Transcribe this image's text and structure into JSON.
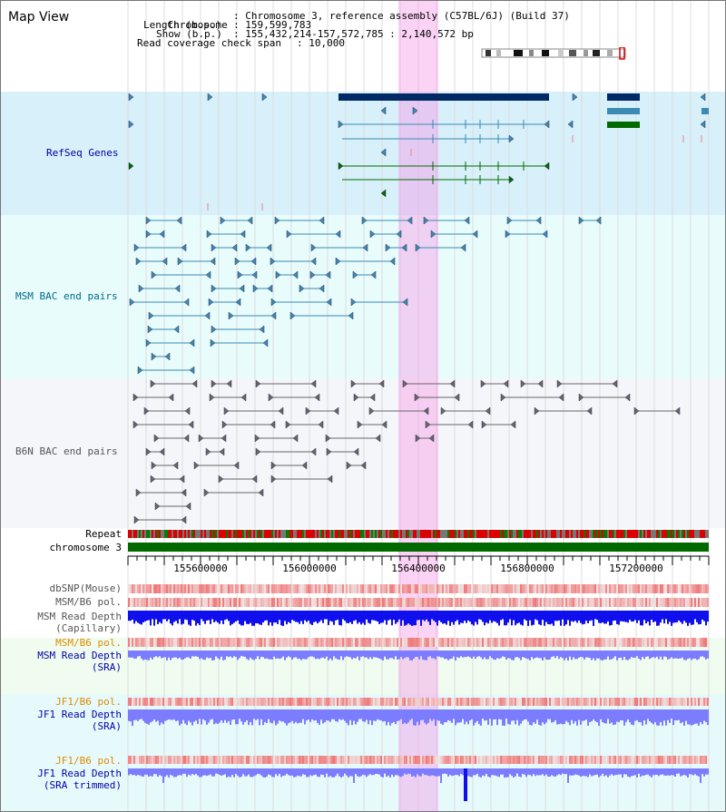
{
  "title": "Map View",
  "info": {
    "chromosome_label": "Chromosome",
    "chromosome_value": ": Chromosome 3, reference assembly (C57BL/6J) (Build 37)",
    "length_label": "Length (b.p.)",
    "length_value": ": 159,599,783",
    "show_label": "Show (b.p.)",
    "show_value": ": 155,432,214-157,572,785 : 2,140,572 bp",
    "span_label": "Read coverage check span",
    "span_value": ": 10,000"
  },
  "tracks": {
    "refseq": "RefSeq Genes",
    "msm_bac": "MSM BAC end pairs",
    "b6n_bac": "B6N BAC end pairs",
    "repeat": "Repeat",
    "chromosome": "chromosome 3",
    "dbsnp": "dbSNP(Mouse)",
    "msm_b6_pol_1": "MSM/B6 pol.",
    "msm_depth_cap_1": "MSM Read Depth",
    "msm_depth_cap_2": "(Capillary)",
    "msm_b6_pol_2": "MSM/B6 pol.",
    "msm_depth_sra_1": "MSM Read Depth",
    "msm_depth_sra_2": "(SRA)",
    "jf1_b6_pol_1": "JF1/B6 pol.",
    "jf1_depth_sra_1": "JF1 Read Depth",
    "jf1_depth_sra_2": "(SRA)",
    "jf1_b6_pol_2": "JF1/B6 pol.",
    "jf1_depth_trim_1": "JF1 Read Depth",
    "jf1_depth_trim_2": "(SRA trimmed)"
  },
  "ruler": {
    "ticks": [
      "155600000",
      "156000000",
      "156400000",
      "156800000",
      "157200000"
    ]
  },
  "colors": {
    "highlight": "#f596e6",
    "refseq_bg": "#d7f0fa",
    "msm_bg": "#e8fcfc",
    "b6n_bg": "#f4f6fa",
    "gene_dark": "#002a66",
    "gene_mid": "#3a8ab4",
    "gene_green": "#006a00",
    "chromosome": "#006a00",
    "depth_dark": "#1010ee",
    "depth_light": "#7c7cff",
    "label_dark_blue": "#0000aa",
    "label_teal": "#006a8a",
    "label_orange": "#e08a00",
    "label_gray": "#555555"
  }
}
